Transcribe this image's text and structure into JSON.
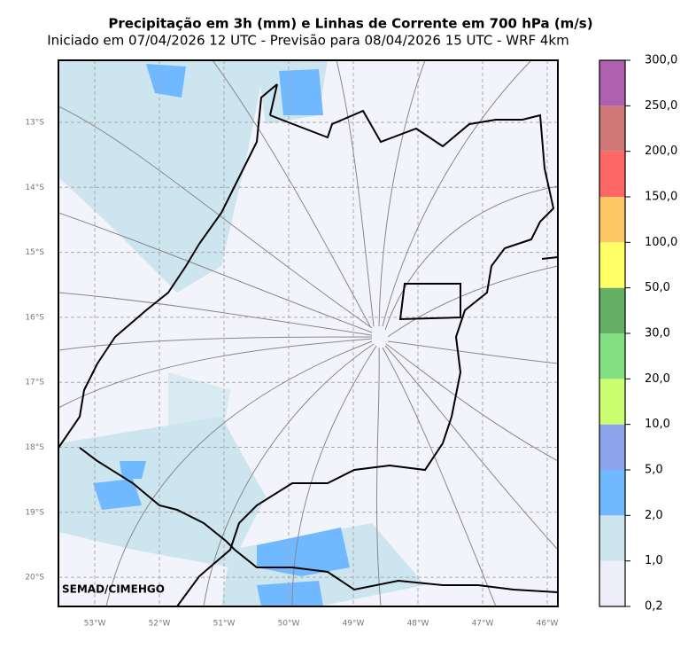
{
  "header": {
    "title": "Precipitação em 3h (mm) e Linhas de Corrente em 700 hPa (m/s)",
    "subtitle": "Iniciado em 07/04/2026 12 UTC - Previsão para 08/04/2026 15 UTC - WRF 4km"
  },
  "map": {
    "lat_labels": [
      "13°S",
      "14°S",
      "15°S",
      "16°S",
      "17°S",
      "18°S",
      "19°S",
      "20°S"
    ],
    "lon_labels": [
      "53°W",
      "52°W",
      "51°W",
      "50°W",
      "49°W",
      "48°W",
      "47°W",
      "46°W"
    ],
    "credit": "SEMAD/CIMEHGO"
  },
  "colorbar": {
    "levels": [
      "0,2",
      "1,0",
      "2,0",
      "5,0",
      "10,0",
      "20,0",
      "30,0",
      "50,0",
      "100,0",
      "150,0",
      "200,0",
      "250,0",
      "300,0"
    ],
    "colors": [
      "#eeeefa",
      "#cde5ee",
      "#70b8ff",
      "#8ca4ee",
      "#ccff70",
      "#82e082",
      "#66b066",
      "#ffff66",
      "#ffc866",
      "#ff6666",
      "#d07878",
      "#b060b0"
    ]
  }
}
